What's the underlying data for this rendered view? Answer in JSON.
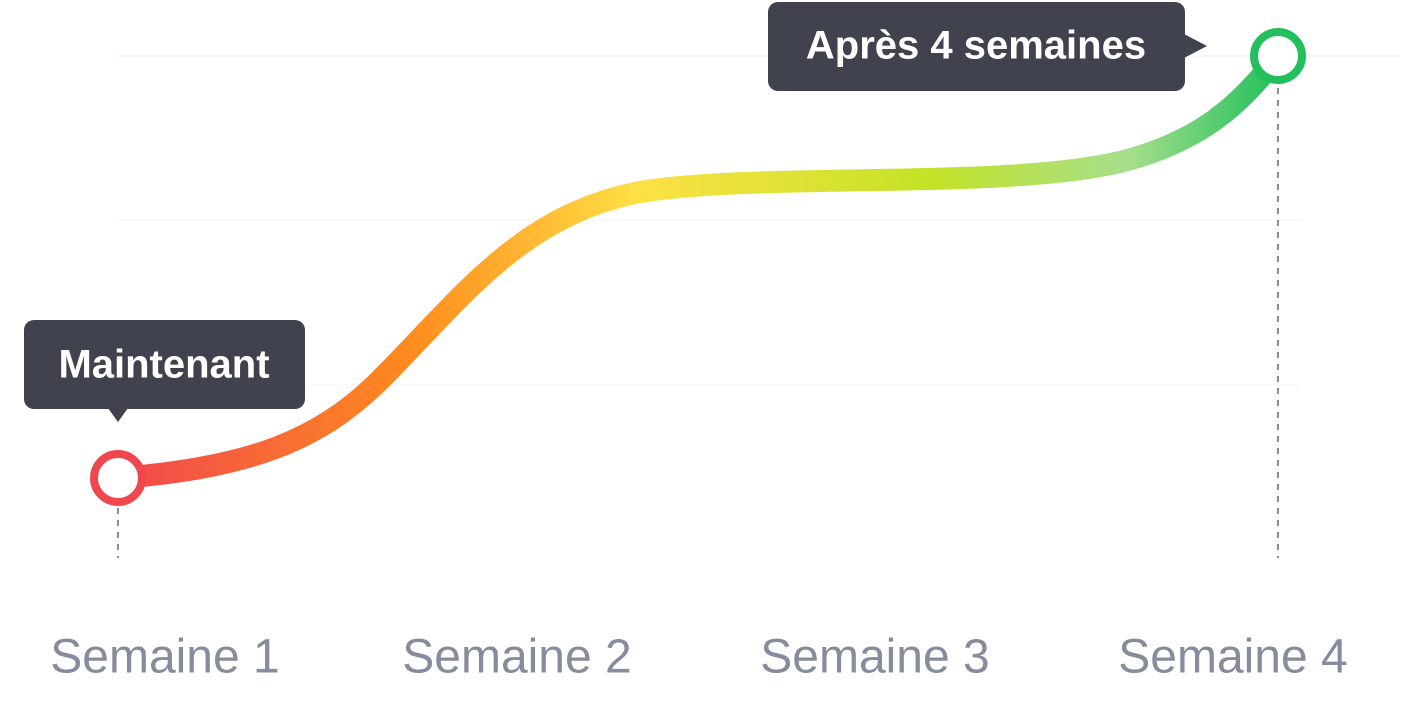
{
  "callouts": [
    "Maintenant",
    "Après 4 semaines"
  ],
  "x_labels": [
    "Semaine 1",
    "Semaine 2",
    "Semaine 3",
    "Semaine 4"
  ]
}
